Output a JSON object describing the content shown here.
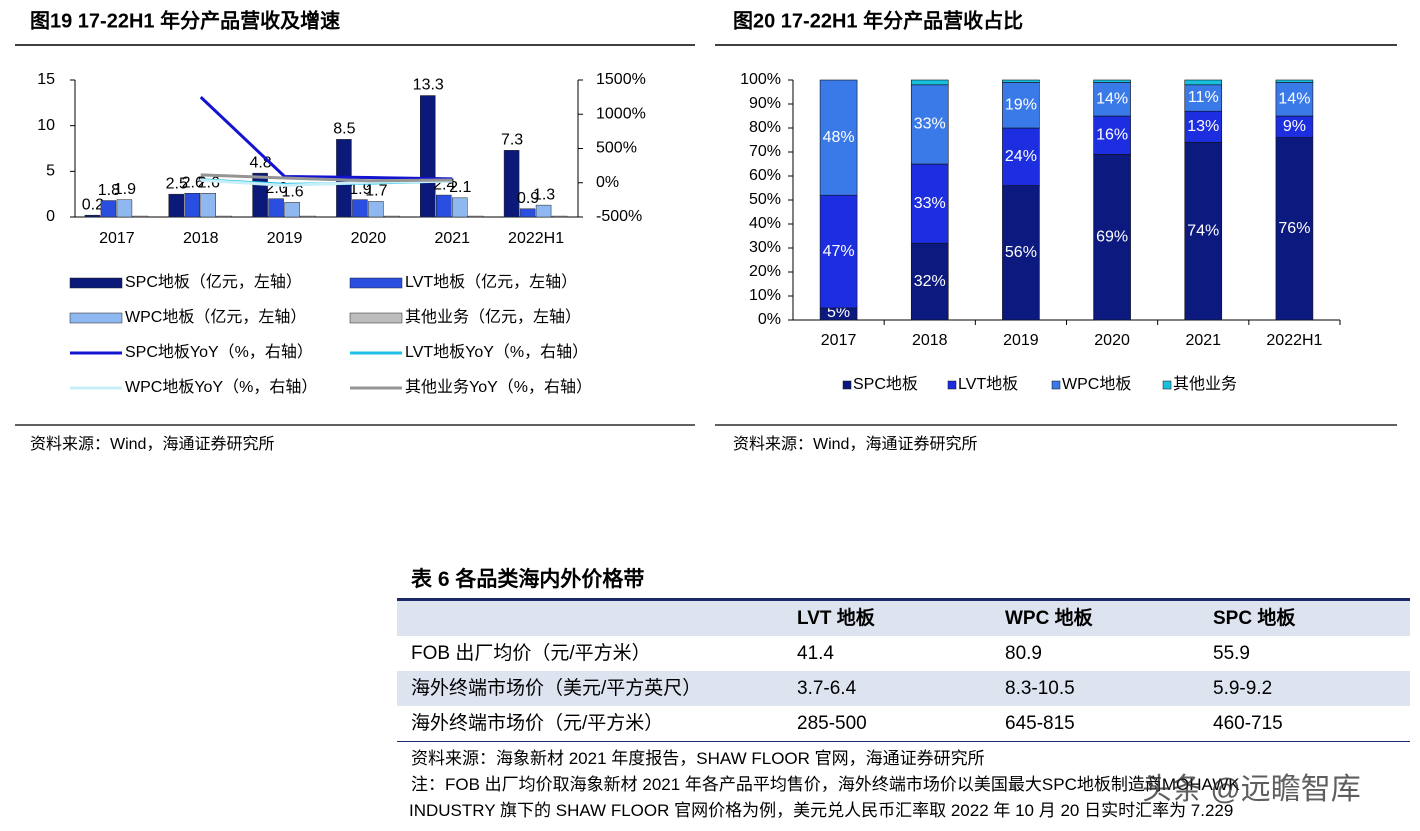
{
  "figures": [
    {
      "title": "图19  17-22H1 年分产品营收及增速",
      "source": "资料来源：Wind，海通证券研究所"
    },
    {
      "title": "图20  17-22H1 年分产品营收占比",
      "source": "资料来源：Wind，海通证券研究所"
    }
  ],
  "chart_data": [
    {
      "type": "combo",
      "categories": [
        "2017",
        "2018",
        "2019",
        "2020",
        "2021",
        "2022H1"
      ],
      "ylim": [
        0,
        15
      ],
      "yticks": [
        0,
        5,
        10,
        15
      ],
      "y2lim": [
        -500,
        1500
      ],
      "y2ticks": [
        {
          "value": -500,
          "label": "-500%"
        },
        {
          "value": 0,
          "label": "0%"
        },
        {
          "value": 500,
          "label": "500%"
        },
        {
          "value": 1000,
          "label": "1000%"
        },
        {
          "value": 1500,
          "label": "1500%"
        }
      ],
      "legend": "bottom",
      "series": [
        {
          "name": "SPC地板（亿元，左轴）",
          "color": "#0b1a78",
          "values": [
            0.2,
            2.5,
            4.8,
            8.5,
            13.3,
            7.3
          ],
          "value_labels": [
            "0.2",
            "2.5",
            "4.8",
            "8.5",
            "13.3",
            "7.3"
          ]
        },
        {
          "name": "LVT地板（亿元，左轴）",
          "color": "#2a4fe0",
          "values": [
            1.8,
            2.6,
            2.0,
            1.9,
            2.4,
            0.9
          ],
          "value_labels": [
            "1.8",
            "2.6",
            "2.0",
            "1.9",
            "2.4",
            "0.9"
          ]
        },
        {
          "name": "WPC地板（亿元，左轴）",
          "color": "#8fb8f0",
          "values": [
            1.9,
            2.6,
            1.6,
            1.7,
            2.1,
            1.3
          ],
          "value_labels": [
            "1.9",
            "2.6",
            "1.6",
            "1.7",
            "2.1",
            "1.3"
          ]
        },
        {
          "name": "其他业务（亿元，左轴）",
          "color": "#bdbdbd",
          "values": [
            0.1,
            0.1,
            0.1,
            0.1,
            0.1,
            0.1
          ]
        },
        {
          "name": "SPC地板YoY（%，右轴）",
          "color": "#1414d0",
          "axis": "y2",
          "values": [
            null,
            1250,
            92,
            77,
            56,
            null
          ]
        },
        {
          "name": "LVT地板YoY（%，右轴）",
          "color": "#22c0e8",
          "axis": "y2",
          "values": [
            null,
            44,
            -23,
            -5,
            26,
            null
          ]
        },
        {
          "name": "WPC地板YoY（%，右轴）",
          "color": "#c8eef8",
          "axis": "y2",
          "values": [
            null,
            37,
            -38,
            6,
            24,
            null
          ]
        },
        {
          "name": "其他业务YoY（%，右轴）",
          "color": "#959595",
          "axis": "y2",
          "values": [
            null,
            115,
            70,
            30,
            40,
            null
          ]
        }
      ]
    },
    {
      "type": "stacked_bar",
      "categories": [
        "2017",
        "2018",
        "2019",
        "2020",
        "2021",
        "2022H1"
      ],
      "ylim": [
        0,
        100
      ],
      "yticks": [
        {
          "value": 0,
          "label": "0%"
        },
        {
          "value": 10,
          "label": "10%"
        },
        {
          "value": 20,
          "label": "20%"
        },
        {
          "value": 30,
          "label": "30%"
        },
        {
          "value": 40,
          "label": "40%"
        },
        {
          "value": 50,
          "label": "50%"
        },
        {
          "value": 60,
          "label": "60%"
        },
        {
          "value": 70,
          "label": "70%"
        },
        {
          "value": 80,
          "label": "80%"
        },
        {
          "value": 90,
          "label": "90%"
        },
        {
          "value": 100,
          "label": "100%"
        }
      ],
      "legend": "bottom",
      "series": [
        {
          "name": "SPC地板",
          "color": "#0c1a80",
          "values": [
            5,
            32,
            56,
            69,
            74,
            76
          ],
          "value_labels": [
            "5%",
            "32%",
            "56%",
            "69%",
            "74%",
            "76%"
          ]
        },
        {
          "name": "LVT地板",
          "color": "#1c2ee0",
          "values": [
            47,
            33,
            24,
            16,
            13,
            9
          ],
          "value_labels": [
            "47%",
            "33%",
            "24%",
            "16%",
            "13%",
            "9%"
          ]
        },
        {
          "name": "WPC地板",
          "color": "#3a7ae8",
          "values": [
            48,
            33,
            19,
            14,
            11,
            14
          ],
          "value_labels": [
            "48%",
            "33%",
            "19%",
            "14%",
            "11%",
            "14%"
          ]
        },
        {
          "name": "其他业务",
          "color": "#18c0e0",
          "values": [
            0,
            2,
            1,
            1,
            2,
            1
          ]
        }
      ]
    }
  ],
  "table": {
    "title": "表 6  各品类海内外价格带",
    "columns": [
      "LVT 地板",
      "WPC 地板",
      "SPC 地板"
    ],
    "rows": [
      [
        "FOB 出厂均价（元/平方米）",
        "41.4",
        "80.9",
        "55.9"
      ],
      [
        "海外终端市场价（美元/平方英尺）",
        "3.7-6.4",
        "8.3-10.5",
        "5.9-9.2"
      ],
      [
        "海外终端市场价（元/平方米）",
        "285-500",
        "645-815",
        "460-715"
      ]
    ]
  },
  "notes": [
    "资料来源：海象新材 2021 年度报告，SHAW FLOOR 官网，海通证券研究所",
    "注：FOB 出厂均价取海象新材 2021 年各产品平均售价，海外终端市场价以美国最大SPC地板制造商MOHAWK",
    "INDUSTRY 旗下的 SHAW FLOOR 官网价格为例，美元兑人民币汇率取 2022 年 10 月 20 日实时汇率为 7.229"
  ],
  "watermark": "头条 @远瞻智库"
}
